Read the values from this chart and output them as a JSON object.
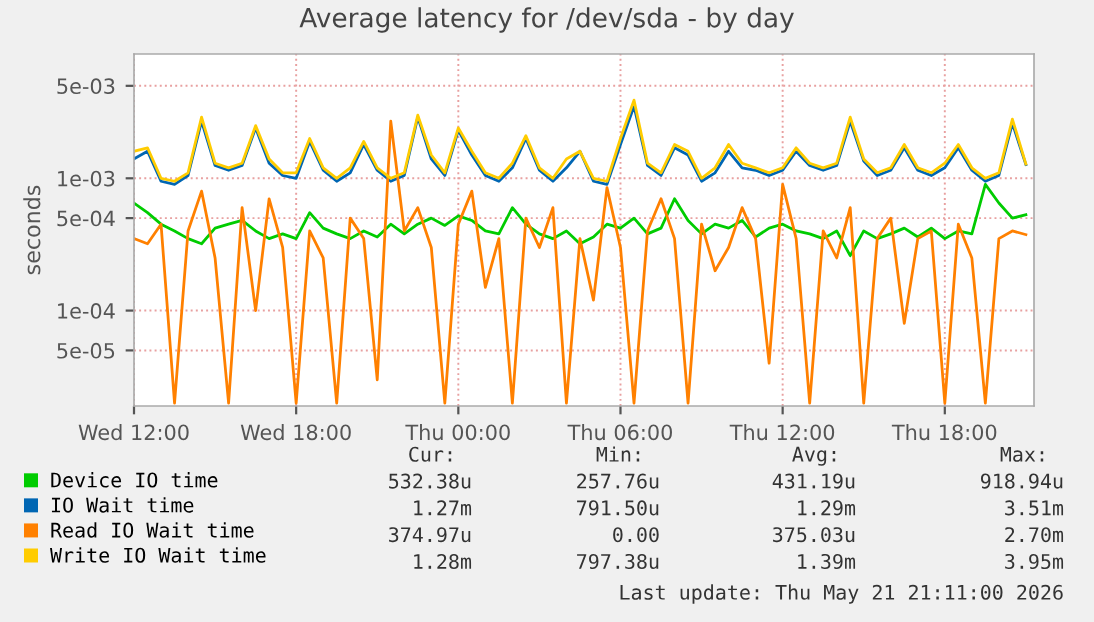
{
  "chart_data": {
    "type": "line",
    "title": "Average latency for /dev/sda - by day",
    "ylabel": "seconds",
    "x": [
      "2026-05-20T12:00",
      "2026-05-20T12:30",
      "2026-05-20T13:00",
      "2026-05-20T13:30",
      "2026-05-20T14:00",
      "2026-05-20T14:30",
      "2026-05-20T15:00",
      "2026-05-20T15:30",
      "2026-05-20T16:00",
      "2026-05-20T16:30",
      "2026-05-20T17:00",
      "2026-05-20T17:30",
      "2026-05-20T18:00",
      "2026-05-20T18:30",
      "2026-05-20T19:00",
      "2026-05-20T19:30",
      "2026-05-20T20:00",
      "2026-05-20T20:30",
      "2026-05-20T21:00",
      "2026-05-20T21:30",
      "2026-05-20T22:00",
      "2026-05-20T22:30",
      "2026-05-20T23:00",
      "2026-05-20T23:30",
      "2026-05-21T00:00",
      "2026-05-21T00:30",
      "2026-05-21T01:00",
      "2026-05-21T01:30",
      "2026-05-21T02:00",
      "2026-05-21T02:30",
      "2026-05-21T03:00",
      "2026-05-21T03:30",
      "2026-05-21T04:00",
      "2026-05-21T04:30",
      "2026-05-21T05:00",
      "2026-05-21T05:30",
      "2026-05-21T06:00",
      "2026-05-21T06:30",
      "2026-05-21T07:00",
      "2026-05-21T07:30",
      "2026-05-21T08:00",
      "2026-05-21T08:30",
      "2026-05-21T09:00",
      "2026-05-21T09:30",
      "2026-05-21T10:00",
      "2026-05-21T10:30",
      "2026-05-21T11:00",
      "2026-05-21T11:30",
      "2026-05-21T12:00",
      "2026-05-21T12:30",
      "2026-05-21T13:00",
      "2026-05-21T13:30",
      "2026-05-21T14:00",
      "2026-05-21T14:30",
      "2026-05-21T15:00",
      "2026-05-21T15:30",
      "2026-05-21T16:00",
      "2026-05-21T16:30",
      "2026-05-21T17:00",
      "2026-05-21T17:30",
      "2026-05-21T18:00",
      "2026-05-21T18:30",
      "2026-05-21T19:00",
      "2026-05-21T19:30",
      "2026-05-21T20:00",
      "2026-05-21T20:30",
      "2026-05-21T21:00"
    ],
    "series": [
      {
        "name": "Device IO time",
        "color": "#00cc00",
        "values": [
          0.00065,
          0.00055,
          0.00045,
          0.0004,
          0.00035,
          0.00032,
          0.00042,
          0.00045,
          0.00048,
          0.0004,
          0.00035,
          0.00038,
          0.00035,
          0.00055,
          0.00042,
          0.00038,
          0.00035,
          0.0004,
          0.00036,
          0.00045,
          0.00038,
          0.00045,
          0.0005,
          0.00044,
          0.00052,
          0.00048,
          0.0004,
          0.00038,
          0.0006,
          0.00045,
          0.00038,
          0.00035,
          0.0004,
          0.00032,
          0.00036,
          0.00045,
          0.00042,
          0.0005,
          0.00038,
          0.00042,
          0.0007,
          0.00048,
          0.00038,
          0.00045,
          0.00042,
          0.00048,
          0.00036,
          0.00042,
          0.00045,
          0.0004,
          0.00038,
          0.00035,
          0.0004,
          0.00026,
          0.0004,
          0.00035,
          0.00038,
          0.00042,
          0.00036,
          0.00042,
          0.00035,
          0.0004,
          0.00038,
          0.0009,
          0.00065,
          0.0005,
          0.00053
        ]
      },
      {
        "name": "IO Wait time",
        "color": "#0066b3",
        "values": [
          0.0014,
          0.0016,
          0.00095,
          0.0009,
          0.00105,
          0.0027,
          0.00125,
          0.00115,
          0.00125,
          0.0024,
          0.0013,
          0.00105,
          0.001,
          0.0019,
          0.00115,
          0.00095,
          0.0011,
          0.0018,
          0.00115,
          0.00095,
          0.00105,
          0.0029,
          0.0014,
          0.00105,
          0.0023,
          0.0015,
          0.00105,
          0.00095,
          0.0012,
          0.002,
          0.00115,
          0.00095,
          0.0012,
          0.0016,
          0.00095,
          0.0009,
          0.0018,
          0.0035,
          0.00125,
          0.00105,
          0.0017,
          0.0015,
          0.00095,
          0.0011,
          0.0016,
          0.0012,
          0.00115,
          0.00105,
          0.00115,
          0.0016,
          0.00125,
          0.00115,
          0.00125,
          0.0027,
          0.00135,
          0.00105,
          0.00115,
          0.0017,
          0.00115,
          0.00105,
          0.0012,
          0.0017,
          0.00115,
          0.00095,
          0.00105,
          0.0026,
          0.00127
        ]
      },
      {
        "name": "Read IO Wait time",
        "color": "#ff8000",
        "values": [
          0.00035,
          0.00032,
          0.00045,
          2e-05,
          0.0004,
          0.0008,
          0.00025,
          2e-05,
          0.0006,
          0.0001,
          0.0007,
          0.0003,
          2e-05,
          0.0004,
          0.00025,
          2e-05,
          0.0005,
          0.00035,
          3e-05,
          0.0027,
          0.0004,
          0.0006,
          0.0003,
          2e-05,
          0.00045,
          0.0008,
          0.00015,
          0.00035,
          2e-05,
          0.0005,
          0.0003,
          0.0006,
          2e-05,
          0.00035,
          0.00012,
          0.00085,
          0.0003,
          2e-05,
          0.0004,
          0.0007,
          0.00035,
          2e-05,
          0.00045,
          0.0002,
          0.0003,
          0.0006,
          0.00035,
          4e-05,
          0.0009,
          0.00035,
          2e-05,
          0.0004,
          0.00025,
          0.0006,
          2e-05,
          0.00035,
          0.0005,
          8e-05,
          0.00035,
          0.0004,
          2e-05,
          0.00045,
          0.00025,
          2e-05,
          0.00035,
          0.0004,
          0.000375
        ]
      },
      {
        "name": "Write IO Wait time",
        "color": "#ffcc00",
        "values": [
          0.0016,
          0.0017,
          0.001,
          0.00095,
          0.0011,
          0.0029,
          0.0013,
          0.0012,
          0.0013,
          0.0025,
          0.0014,
          0.0011,
          0.0011,
          0.002,
          0.0012,
          0.001,
          0.0012,
          0.0019,
          0.0012,
          0.001,
          0.0011,
          0.003,
          0.0015,
          0.0011,
          0.0024,
          0.0016,
          0.0011,
          0.001,
          0.0013,
          0.0021,
          0.0012,
          0.001,
          0.0014,
          0.0016,
          0.001,
          0.00095,
          0.002,
          0.0039,
          0.0013,
          0.0011,
          0.0018,
          0.0016,
          0.001,
          0.0012,
          0.0018,
          0.0013,
          0.0012,
          0.0011,
          0.0012,
          0.0017,
          0.0013,
          0.0012,
          0.0013,
          0.0029,
          0.0014,
          0.0011,
          0.0012,
          0.0018,
          0.0012,
          0.0011,
          0.0013,
          0.0018,
          0.0012,
          0.001,
          0.0011,
          0.0028,
          0.00128
        ]
      }
    ],
    "log": "y",
    "ylim": [
      1.9e-05,
      0.0087
    ],
    "yticks": [
      {
        "value": 5e-05,
        "label": "5e-05"
      },
      {
        "value": 0.0001,
        "label": "1e-04"
      },
      {
        "value": 0.0005,
        "label": "5e-04"
      },
      {
        "value": 0.001,
        "label": "1e-03"
      },
      {
        "value": 0.005,
        "label": "5e-03"
      }
    ],
    "xlim": [
      "2026-05-20T12:00",
      "2026-05-21T21:18"
    ],
    "xticks": [
      {
        "value": "2026-05-20T12:00",
        "label": "Wed 12:00"
      },
      {
        "value": "2026-05-20T18:00",
        "label": "Wed 18:00"
      },
      {
        "value": "2026-05-21T00:00",
        "label": "Thu 00:00"
      },
      {
        "value": "2026-05-21T06:00",
        "label": "Thu 06:00"
      },
      {
        "value": "2026-05-21T12:00",
        "label": "Thu 12:00"
      },
      {
        "value": "2026-05-21T18:00",
        "label": "Thu 18:00"
      }
    ],
    "grid": true,
    "legend": "bottom",
    "marker": "none",
    "line_style": "solid",
    "annotations": [
      "Cur:",
      "Min:",
      "Avg:",
      "Max:",
      "532.38u",
      "257.76u",
      "431.19u",
      "918.94u",
      "1.27m",
      "791.50u",
      "1.29m",
      "3.51m",
      "374.97u",
      "0.00",
      "375.03u",
      "2.70m",
      "1.28m",
      "797.38u",
      "1.39m",
      "3.95m",
      "Last update: Thu May 21 21:11:00 2026"
    ]
  }
}
